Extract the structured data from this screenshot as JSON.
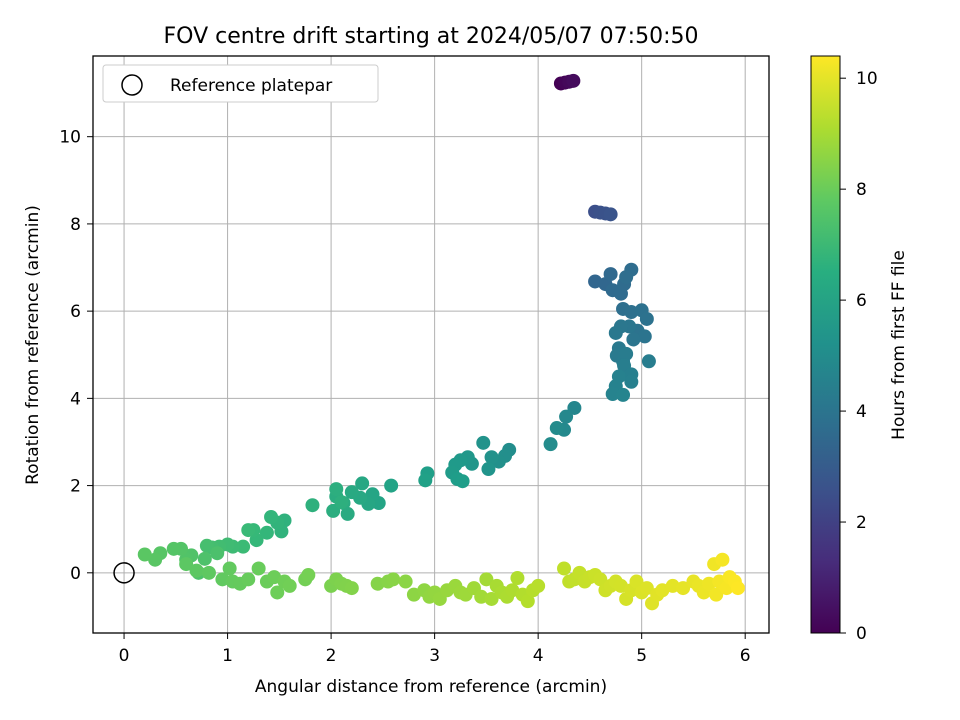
{
  "chart_data": {
    "type": "scatter",
    "title": "FOV centre drift starting at 2024/05/07 07:50:50",
    "xlabel": "Angular distance from reference (arcmin)",
    "ylabel": "Rotation from reference (arcmin)",
    "xlim": [
      -0.3,
      6.23
    ],
    "ylim": [
      -1.38,
      11.85
    ],
    "x_ticks": [
      0,
      1,
      2,
      3,
      4,
      5,
      6
    ],
    "y_ticks": [
      0,
      2,
      4,
      6,
      8,
      10
    ],
    "grid": true,
    "legend": {
      "placement": "top-left",
      "entries": [
        "Reference platepar"
      ]
    },
    "reference_point": {
      "x": 0,
      "y": 0
    },
    "colorbar": {
      "label": "Hours from first FF file",
      "range": [
        0,
        10.4
      ],
      "ticks": [
        0,
        2,
        4,
        6,
        8,
        10
      ],
      "colormap": "viridis"
    },
    "colorbar_text": {
      "t0": "0",
      "t1": "2",
      "t2": "4",
      "t3": "6",
      "t4": "8",
      "t5": "10"
    },
    "segments": [
      {
        "t": [
          0.0,
          0.3
        ],
        "points": [
          [
            4.22,
            11.22
          ],
          [
            4.26,
            11.24
          ],
          [
            4.3,
            11.26
          ],
          [
            4.34,
            11.28
          ]
        ]
      },
      {
        "t": [
          2.5,
          2.7
        ],
        "points": [
          [
            4.55,
            8.28
          ],
          [
            4.6,
            8.26
          ],
          [
            4.65,
            8.24
          ],
          [
            4.7,
            8.22
          ]
        ]
      },
      {
        "t": [
          3.4,
          4.7
        ],
        "points": [
          [
            4.55,
            6.68
          ],
          [
            4.65,
            6.62
          ],
          [
            4.7,
            6.85
          ],
          [
            4.72,
            6.48
          ],
          [
            4.8,
            6.4
          ],
          [
            4.83,
            6.62
          ],
          [
            4.9,
            6.95
          ],
          [
            4.85,
            6.78
          ],
          [
            4.82,
            6.05
          ],
          [
            4.9,
            5.98
          ],
          [
            5.0,
            6.02
          ],
          [
            5.05,
            5.82
          ],
          [
            4.96,
            5.55
          ],
          [
            5.03,
            5.42
          ],
          [
            4.92,
            5.35
          ],
          [
            4.88,
            5.65
          ],
          [
            4.8,
            5.65
          ],
          [
            4.75,
            5.5
          ],
          [
            4.78,
            5.15
          ],
          [
            4.76,
            4.98
          ],
          [
            4.82,
            4.85
          ],
          [
            4.85,
            5.02
          ],
          [
            5.07,
            4.85
          ],
          [
            4.83,
            4.75
          ],
          [
            4.9,
            4.55
          ],
          [
            4.9,
            4.38
          ],
          [
            4.78,
            4.5
          ],
          [
            4.75,
            4.28
          ],
          [
            4.72,
            4.1
          ],
          [
            4.82,
            4.08
          ]
        ]
      },
      {
        "t": [
          4.8,
          5.9
        ],
        "points": [
          [
            4.35,
            3.78
          ],
          [
            4.27,
            3.58
          ],
          [
            4.25,
            3.28
          ],
          [
            4.18,
            3.32
          ],
          [
            4.12,
            2.95
          ],
          [
            3.72,
            2.82
          ],
          [
            3.68,
            2.68
          ],
          [
            3.62,
            2.55
          ],
          [
            3.55,
            2.65
          ],
          [
            3.47,
            2.98
          ],
          [
            3.52,
            2.38
          ],
          [
            3.36,
            2.5
          ],
          [
            3.32,
            2.65
          ],
          [
            3.25,
            2.58
          ],
          [
            3.2,
            2.48
          ],
          [
            3.17,
            2.3
          ],
          [
            3.22,
            2.15
          ],
          [
            3.27,
            2.1
          ],
          [
            2.93,
            2.28
          ],
          [
            2.91,
            2.12
          ]
        ]
      },
      {
        "t": [
          6.0,
          7.3
        ],
        "points": [
          [
            2.58,
            2.0
          ],
          [
            2.46,
            1.6
          ],
          [
            2.4,
            1.8
          ],
          [
            2.36,
            1.58
          ],
          [
            2.3,
            2.05
          ],
          [
            2.28,
            1.72
          ],
          [
            2.2,
            1.85
          ],
          [
            2.16,
            1.35
          ],
          [
            2.12,
            1.6
          ],
          [
            2.05,
            1.75
          ],
          [
            2.02,
            1.42
          ],
          [
            2.05,
            1.92
          ],
          [
            2.1,
            1.62
          ],
          [
            1.82,
            1.55
          ],
          [
            1.55,
            1.2
          ],
          [
            1.52,
            0.95
          ],
          [
            1.48,
            1.15
          ],
          [
            1.42,
            1.28
          ],
          [
            1.38,
            0.92
          ],
          [
            1.28,
            0.75
          ],
          [
            1.25,
            0.98
          ],
          [
            1.2,
            0.98
          ],
          [
            1.15,
            0.6
          ],
          [
            1.05,
            0.6
          ],
          [
            1.0,
            0.65
          ],
          [
            0.92,
            0.6
          ],
          [
            0.85,
            0.58
          ],
          [
            0.8,
            0.62
          ]
        ]
      },
      {
        "t": [
          7.4,
          8.2
        ],
        "points": [
          [
            0.9,
            0.45
          ],
          [
            0.78,
            0.32
          ],
          [
            0.72,
            0.0
          ],
          [
            0.65,
            0.4
          ],
          [
            0.6,
            0.3
          ],
          [
            0.55,
            0.55
          ],
          [
            0.48,
            0.55
          ],
          [
            0.35,
            0.45
          ],
          [
            0.3,
            0.3
          ],
          [
            0.2,
            0.42
          ],
          [
            0.6,
            0.2
          ],
          [
            0.7,
            0.05
          ],
          [
            0.82,
            0.0
          ],
          [
            0.95,
            -0.15
          ],
          [
            1.02,
            0.1
          ],
          [
            1.05,
            -0.2
          ],
          [
            1.12,
            -0.25
          ],
          [
            1.2,
            -0.15
          ],
          [
            1.3,
            0.1
          ],
          [
            1.38,
            -0.2
          ],
          [
            1.45,
            -0.1
          ],
          [
            1.48,
            -0.45
          ],
          [
            1.55,
            -0.2
          ],
          [
            1.6,
            -0.3
          ],
          [
            1.75,
            -0.15
          ],
          [
            1.78,
            -0.05
          ]
        ]
      },
      {
        "t": [
          8.3,
          9.3
        ],
        "points": [
          [
            2.0,
            -0.3
          ],
          [
            2.05,
            -0.15
          ],
          [
            2.1,
            -0.25
          ],
          [
            2.15,
            -0.3
          ],
          [
            2.2,
            -0.35
          ],
          [
            2.45,
            -0.25
          ],
          [
            2.55,
            -0.2
          ],
          [
            2.6,
            -0.15
          ],
          [
            2.72,
            -0.2
          ],
          [
            2.8,
            -0.5
          ],
          [
            2.9,
            -0.4
          ],
          [
            2.95,
            -0.55
          ],
          [
            3.0,
            -0.45
          ],
          [
            3.05,
            -0.6
          ],
          [
            3.12,
            -0.4
          ],
          [
            3.2,
            -0.3
          ],
          [
            3.25,
            -0.45
          ],
          [
            3.3,
            -0.5
          ],
          [
            3.38,
            -0.35
          ],
          [
            3.45,
            -0.55
          ],
          [
            3.5,
            -0.15
          ],
          [
            3.55,
            -0.6
          ],
          [
            3.6,
            -0.3
          ],
          [
            3.65,
            -0.45
          ],
          [
            3.7,
            -0.55
          ],
          [
            3.75,
            -0.4
          ],
          [
            3.8,
            -0.12
          ],
          [
            3.85,
            -0.5
          ],
          [
            3.9,
            -0.65
          ],
          [
            3.95,
            -0.4
          ],
          [
            4.0,
            -0.3
          ]
        ]
      },
      {
        "t": [
          9.4,
          10.4
        ],
        "points": [
          [
            4.25,
            0.1
          ],
          [
            4.3,
            -0.2
          ],
          [
            4.35,
            -0.15
          ],
          [
            4.4,
            0.0
          ],
          [
            4.45,
            -0.2
          ],
          [
            4.5,
            -0.1
          ],
          [
            4.55,
            -0.05
          ],
          [
            4.6,
            -0.15
          ],
          [
            4.65,
            -0.4
          ],
          [
            4.7,
            -0.3
          ],
          [
            4.75,
            -0.2
          ],
          [
            4.8,
            -0.3
          ],
          [
            4.85,
            -0.6
          ],
          [
            4.9,
            -0.4
          ],
          [
            4.95,
            -0.2
          ],
          [
            5.0,
            -0.45
          ],
          [
            5.05,
            -0.35
          ],
          [
            5.1,
            -0.7
          ],
          [
            5.15,
            -0.5
          ],
          [
            5.2,
            -0.4
          ],
          [
            5.3,
            -0.3
          ],
          [
            5.4,
            -0.35
          ],
          [
            5.5,
            -0.2
          ],
          [
            5.55,
            -0.3
          ],
          [
            5.6,
            -0.45
          ],
          [
            5.65,
            -0.25
          ],
          [
            5.7,
            0.2
          ],
          [
            5.72,
            -0.5
          ],
          [
            5.75,
            -0.2
          ],
          [
            5.78,
            0.3
          ],
          [
            5.82,
            -0.35
          ],
          [
            5.85,
            -0.1
          ],
          [
            5.9,
            -0.2
          ],
          [
            5.93,
            -0.35
          ]
        ]
      }
    ]
  }
}
